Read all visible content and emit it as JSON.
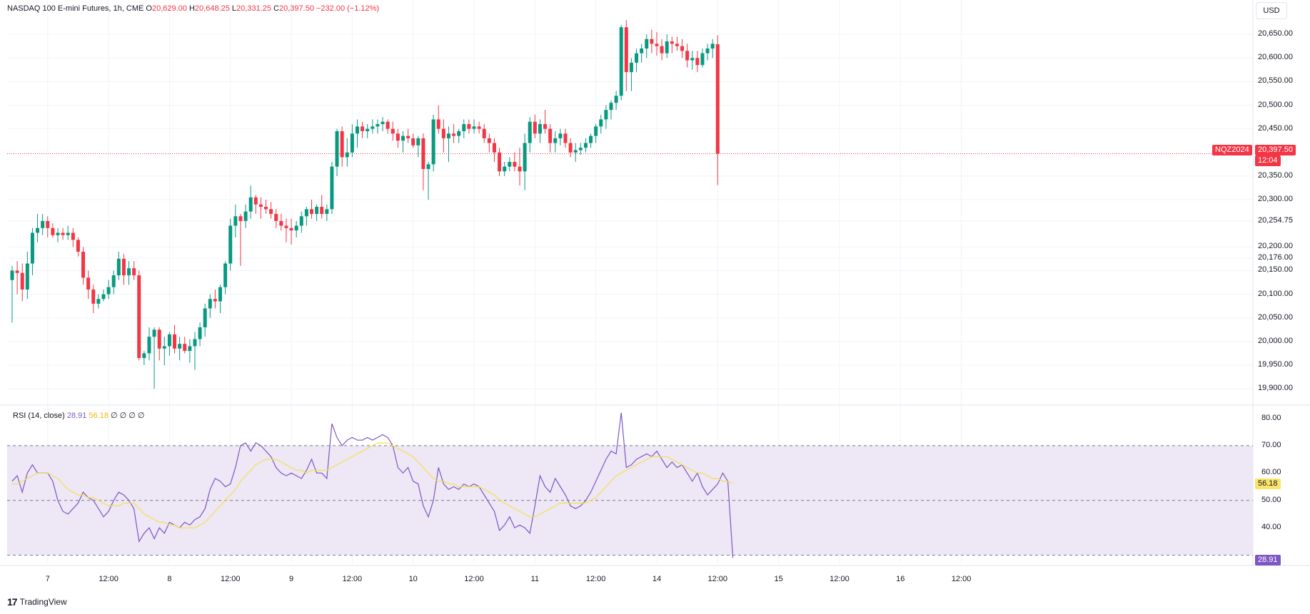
{
  "header": {
    "symbol": "NASDAQ 100 E-mini Futures, 1h, CME",
    "o_label": "O",
    "o_value": "20,629.00",
    "h_label": "H",
    "h_value": "20,648.25",
    "l_label": "L",
    "l_value": "20,331.25",
    "c_label": "C",
    "c_value": "20,397.50",
    "change": "−232.00 (−1.12%)"
  },
  "currency_button": "USD",
  "rsi_header": {
    "label": "RSI (14, close)",
    "rsi_value": "28.91",
    "ma_value": "56.18",
    "extras": "∅ ∅ ∅ ∅"
  },
  "price_tag": {
    "ticker": "NQZ2024",
    "price": "20,397.50",
    "countdown": "12:04"
  },
  "rsi_tags": {
    "ma": "56.18",
    "rsi": "28.91"
  },
  "brand": "TradingView",
  "colors": {
    "up": "#089981",
    "down": "#f23645",
    "rsi_line": "#7e57c2",
    "rsi_ma": "#f5e04f",
    "rsi_band": "#ede7f6"
  },
  "chart_data": [
    {
      "type": "candlestick",
      "title": "NASDAQ 100 E-mini Futures, 1h, CME",
      "ylim": [
        19870,
        20700
      ],
      "y_ticks": [
        "20,650.00",
        "20,600.00",
        "20,550.00",
        "20,500.00",
        "20,450.00",
        "20,350.00",
        "20,300.00",
        "20,254.75",
        "20,200.00",
        "20,176.00",
        "20,150.00",
        "20,100.00",
        "20,050.00",
        "20,000.00",
        "19,950.00",
        "19,900.00"
      ],
      "x_ticks": [
        {
          "label": "7",
          "index": 7
        },
        {
          "label": "12:00",
          "index": 19
        },
        {
          "label": "8",
          "index": 31
        },
        {
          "label": "12:00",
          "index": 43
        },
        {
          "label": "9",
          "index": 55
        },
        {
          "label": "12:00",
          "index": 67
        },
        {
          "label": "10",
          "index": 79
        },
        {
          "label": "12:00",
          "index": 91
        },
        {
          "label": "11",
          "index": 103
        },
        {
          "label": "12:00",
          "index": 115
        },
        {
          "label": "14",
          "index": 127
        },
        {
          "label": "12:00",
          "index": 139
        },
        {
          "label": "15",
          "index": 151
        },
        {
          "label": "12:00",
          "index": 163
        },
        {
          "label": "16",
          "index": 175
        },
        {
          "label": "12:00",
          "index": 187
        }
      ],
      "last_price": 20397.5,
      "ohlc": [
        [
          20130,
          20160,
          20040,
          20150
        ],
        [
          20150,
          20170,
          20100,
          20145
        ],
        [
          20145,
          20165,
          20085,
          20110
        ],
        [
          20110,
          20190,
          20090,
          20165
        ],
        [
          20165,
          20240,
          20140,
          20230
        ],
        [
          20230,
          20270,
          20210,
          20240
        ],
        [
          20240,
          20270,
          20225,
          20255
        ],
        [
          20255,
          20265,
          20220,
          20240
        ],
        [
          20240,
          20250,
          20220,
          20225
        ],
        [
          20225,
          20240,
          20210,
          20230
        ],
        [
          20230,
          20240,
          20215,
          20225
        ],
        [
          20225,
          20245,
          20215,
          20230
        ],
        [
          20230,
          20240,
          20200,
          20215
        ],
        [
          20215,
          20220,
          20180,
          20190
        ],
        [
          20190,
          20200,
          20120,
          20135
        ],
        [
          20135,
          20150,
          20090,
          20110
        ],
        [
          20110,
          20120,
          20060,
          20080
        ],
        [
          20080,
          20100,
          20070,
          20090
        ],
        [
          20090,
          20110,
          20085,
          20100
        ],
        [
          20100,
          20130,
          20090,
          20115
        ],
        [
          20115,
          20150,
          20100,
          20140
        ],
        [
          20140,
          20190,
          20130,
          20175
        ],
        [
          20175,
          20185,
          20120,
          20140
        ],
        [
          20140,
          20170,
          20120,
          20155
        ],
        [
          20155,
          20170,
          20130,
          20140
        ],
        [
          20140,
          20150,
          19960,
          19965
        ],
        [
          19965,
          19980,
          19950,
          19975
        ],
        [
          19975,
          20030,
          19960,
          20010
        ],
        [
          20010,
          20030,
          19900,
          20025
        ],
        [
          20025,
          20030,
          19960,
          19985
        ],
        [
          19985,
          20010,
          19950,
          19990
        ],
        [
          19990,
          20020,
          19970,
          20015
        ],
        [
          20015,
          20035,
          19975,
          19985
        ],
        [
          19985,
          20010,
          19960,
          19995
        ],
        [
          19995,
          20010,
          19975,
          19980
        ],
        [
          19980,
          20005,
          19955,
          19990
        ],
        [
          19990,
          20020,
          19940,
          20005
        ],
        [
          20005,
          20040,
          19990,
          20030
        ],
        [
          20030,
          20080,
          20010,
          20070
        ],
        [
          20070,
          20100,
          20050,
          20090
        ],
        [
          20090,
          20110,
          20070,
          20085
        ],
        [
          20085,
          20120,
          20060,
          20115
        ],
        [
          20115,
          20170,
          20100,
          20165
        ],
        [
          20165,
          20260,
          20150,
          20245
        ],
        [
          20245,
          20290,
          20220,
          20265
        ],
        [
          20265,
          20270,
          20160,
          20255
        ],
        [
          20255,
          20290,
          20240,
          20275
        ],
        [
          20275,
          20330,
          20260,
          20305
        ],
        [
          20305,
          20310,
          20270,
          20290
        ],
        [
          20290,
          20305,
          20260,
          20285
        ],
        [
          20285,
          20300,
          20270,
          20280
        ],
        [
          20280,
          20295,
          20260,
          20270
        ],
        [
          20270,
          20280,
          20240,
          20255
        ],
        [
          20255,
          20270,
          20235,
          20245
        ],
        [
          20245,
          20260,
          20210,
          20240
        ],
        [
          20240,
          20260,
          20205,
          20235
        ],
        [
          20235,
          20255,
          20220,
          20245
        ],
        [
          20245,
          20275,
          20230,
          20265
        ],
        [
          20265,
          20285,
          20245,
          20280
        ],
        [
          20280,
          20300,
          20260,
          20270
        ],
        [
          20270,
          20290,
          20255,
          20285
        ],
        [
          20285,
          20310,
          20260,
          20270
        ],
        [
          20270,
          20290,
          20255,
          20280
        ],
        [
          20280,
          20380,
          20270,
          20370
        ],
        [
          20370,
          20450,
          20350,
          20445
        ],
        [
          20445,
          20455,
          20370,
          20390
        ],
        [
          20390,
          20430,
          20370,
          20400
        ],
        [
          20400,
          20460,
          20390,
          20440
        ],
        [
          20440,
          20470,
          20410,
          20455
        ],
        [
          20455,
          20465,
          20430,
          20445
        ],
        [
          20445,
          20460,
          20430,
          20450
        ],
        [
          20450,
          20470,
          20440,
          20455
        ],
        [
          20455,
          20470,
          20440,
          20460
        ],
        [
          20460,
          20475,
          20445,
          20465
        ],
        [
          20465,
          20470,
          20440,
          20450
        ],
        [
          20450,
          20465,
          20425,
          20440
        ],
        [
          20440,
          20450,
          20410,
          20425
        ],
        [
          20425,
          20445,
          20400,
          20435
        ],
        [
          20435,
          20450,
          20420,
          20430
        ],
        [
          20430,
          20440,
          20410,
          20415
        ],
        [
          20415,
          20435,
          20390,
          20430
        ],
        [
          20430,
          20440,
          20320,
          20365
        ],
        [
          20365,
          20380,
          20300,
          20375
        ],
        [
          20375,
          20480,
          20360,
          20470
        ],
        [
          20470,
          20500,
          20440,
          20450
        ],
        [
          20450,
          20470,
          20400,
          20430
        ],
        [
          20430,
          20455,
          20380,
          20440
        ],
        [
          20440,
          20460,
          20420,
          20435
        ],
        [
          20435,
          20450,
          20420,
          20445
        ],
        [
          20445,
          20470,
          20430,
          20460
        ],
        [
          20460,
          20470,
          20440,
          20450
        ],
        [
          20450,
          20470,
          20440,
          20455
        ],
        [
          20455,
          20465,
          20440,
          20450
        ],
        [
          20450,
          20460,
          20420,
          20430
        ],
        [
          20430,
          20440,
          20400,
          20420
        ],
        [
          20420,
          20430,
          20380,
          20400
        ],
        [
          20400,
          20410,
          20350,
          20360
        ],
        [
          20360,
          20380,
          20350,
          20370
        ],
        [
          20370,
          20390,
          20360,
          20380
        ],
        [
          20380,
          20400,
          20360,
          20370
        ],
        [
          20370,
          20410,
          20330,
          20360
        ],
        [
          20360,
          20440,
          20320,
          20420
        ],
        [
          20420,
          20475,
          20400,
          20465
        ],
        [
          20465,
          20480,
          20430,
          20440
        ],
        [
          20440,
          20470,
          20420,
          20460
        ],
        [
          20460,
          20490,
          20440,
          20450
        ],
        [
          20450,
          20460,
          20400,
          20420
        ],
        [
          20420,
          20445,
          20400,
          20430
        ],
        [
          20430,
          20450,
          20415,
          20440
        ],
        [
          20440,
          20450,
          20410,
          20420
        ],
        [
          20420,
          20430,
          20390,
          20400
        ],
        [
          20400,
          20420,
          20380,
          20405
        ],
        [
          20405,
          20420,
          20395,
          20410
        ],
        [
          20410,
          20430,
          20400,
          20420
        ],
        [
          20420,
          20440,
          20410,
          20435
        ],
        [
          20435,
          20460,
          20420,
          20455
        ],
        [
          20455,
          20480,
          20440,
          20470
        ],
        [
          20470,
          20500,
          20450,
          20490
        ],
        [
          20490,
          20510,
          20470,
          20505
        ],
        [
          20505,
          20530,
          20490,
          20520
        ],
        [
          20520,
          20670,
          20510,
          20665
        ],
        [
          20665,
          20680,
          20530,
          20570
        ],
        [
          20570,
          20600,
          20530,
          20590
        ],
        [
          20590,
          20620,
          20570,
          20610
        ],
        [
          20610,
          20630,
          20590,
          20620
        ],
        [
          20620,
          20650,
          20600,
          20640
        ],
        [
          20640,
          20660,
          20610,
          20630
        ],
        [
          20630,
          20655,
          20605,
          20625
        ],
        [
          20625,
          20640,
          20595,
          20610
        ],
        [
          20610,
          20650,
          20600,
          20635
        ],
        [
          20635,
          20645,
          20610,
          20630
        ],
        [
          20630,
          20645,
          20615,
          20625
        ],
        [
          20625,
          20640,
          20600,
          20615
        ],
        [
          20615,
          20630,
          20580,
          20595
        ],
        [
          20595,
          20615,
          20575,
          20600
        ],
        [
          20600,
          20615,
          20570,
          20585
        ],
        [
          20585,
          20620,
          20580,
          20610
        ],
        [
          20610,
          20630,
          20595,
          20620
        ],
        [
          20620,
          20640,
          20600,
          20630
        ],
        [
          20629,
          20648,
          20331,
          20397.5
        ]
      ]
    },
    {
      "type": "line",
      "title": "RSI (14, close)",
      "ylim": [
        27,
        83
      ],
      "y_ticks": [
        "80.00",
        "70.00",
        "60.00",
        "50.00",
        "40.00"
      ],
      "bands": [
        30,
        50,
        70
      ],
      "series": [
        {
          "name": "RSI",
          "values": [
            57,
            59,
            53,
            60,
            63,
            60,
            60,
            60,
            57,
            50,
            46,
            45,
            47,
            49,
            53,
            51,
            50,
            47,
            44,
            46,
            50,
            53,
            52,
            50,
            47,
            35,
            38,
            40,
            36,
            40,
            38,
            42,
            41,
            40,
            42,
            41,
            43,
            44,
            47,
            54,
            58,
            57,
            55,
            56,
            62,
            70,
            71,
            68,
            71,
            70,
            68,
            66,
            62,
            60,
            59,
            60,
            59,
            58,
            61,
            65,
            60,
            60,
            58,
            78,
            73,
            70,
            72,
            73,
            72,
            72,
            73,
            72,
            73,
            74,
            73,
            70,
            62,
            60,
            62,
            57,
            56,
            48,
            44,
            50,
            62,
            56,
            54,
            55,
            54,
            56,
            55,
            56,
            55,
            52,
            49,
            46,
            39,
            41,
            44,
            40,
            41,
            40,
            38,
            48,
            59,
            55,
            53,
            58,
            55,
            52,
            48,
            47,
            48,
            50,
            53,
            57,
            61,
            65,
            68,
            67,
            82,
            62,
            63,
            65,
            66,
            67,
            66,
            68,
            65,
            62,
            64,
            62,
            63,
            60,
            57,
            60,
            55,
            52,
            54,
            56,
            60,
            57,
            29
          ]
        },
        {
          "name": "MA",
          "values": [
            56,
            56,
            57,
            58,
            59,
            60,
            60,
            60,
            59,
            58,
            56,
            54,
            53,
            52,
            52,
            51,
            51,
            50,
            49,
            48,
            48,
            48,
            49,
            49,
            49,
            47,
            45,
            44,
            43,
            42,
            42,
            41,
            41,
            40,
            40,
            40,
            40,
            41,
            42,
            44,
            46,
            48,
            50,
            52,
            54,
            57,
            59,
            61,
            63,
            64,
            65,
            65,
            65,
            64,
            63,
            62,
            61,
            61,
            60,
            61,
            61,
            61,
            61,
            62,
            63,
            64,
            65,
            66,
            67,
            68,
            69,
            70,
            71,
            71,
            71,
            70,
            69,
            68,
            67,
            66,
            64,
            62,
            60,
            58,
            57,
            57,
            56,
            56,
            55,
            55,
            55,
            55,
            55,
            54,
            53,
            52,
            50,
            49,
            48,
            47,
            46,
            45,
            44,
            44,
            45,
            46,
            47,
            48,
            49,
            49,
            49,
            49,
            49,
            49,
            50,
            51,
            53,
            55,
            57,
            59,
            60,
            61,
            62,
            63,
            64,
            65,
            66,
            66,
            66,
            66,
            65,
            64,
            63,
            62,
            61,
            60,
            60,
            59,
            58,
            58,
            57,
            57,
            56.18
          ]
        }
      ]
    }
  ]
}
